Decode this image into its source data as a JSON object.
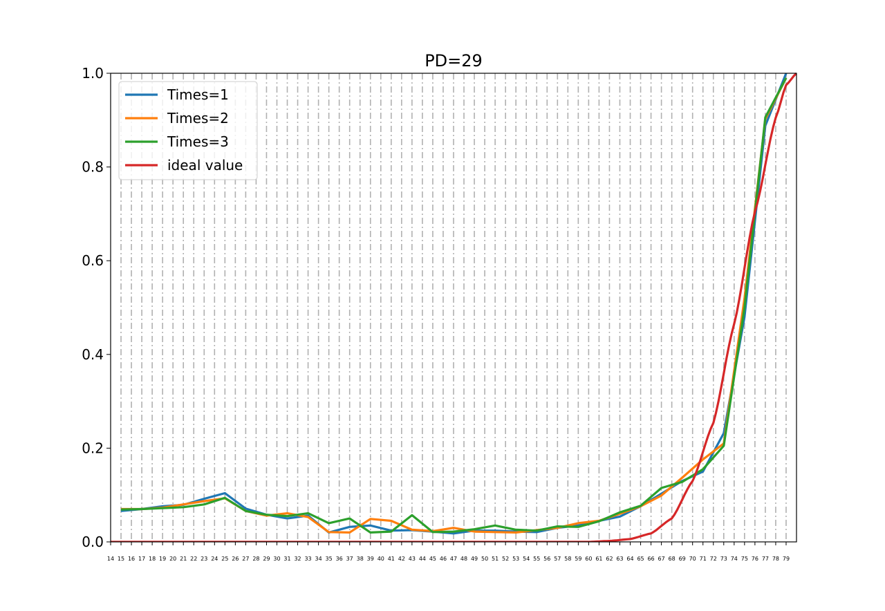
{
  "chart_data": {
    "type": "line",
    "title": "PD=29",
    "xlabel": "",
    "ylabel": "",
    "xlim": [
      14,
      80
    ],
    "ylim": [
      0,
      1.0
    ],
    "x_ticks": [
      14,
      15,
      16,
      17,
      18,
      19,
      20,
      21,
      22,
      23,
      24,
      25,
      26,
      27,
      28,
      29,
      30,
      31,
      32,
      33,
      34,
      35,
      36,
      37,
      38,
      39,
      40,
      41,
      42,
      43,
      44,
      45,
      46,
      47,
      48,
      49,
      50,
      51,
      52,
      53,
      54,
      55,
      56,
      57,
      58,
      59,
      60,
      61,
      62,
      63,
      64,
      65,
      66,
      67,
      68,
      69,
      70,
      71,
      72,
      73,
      74,
      75,
      76,
      77,
      78,
      79
    ],
    "y_ticks": [
      "0.0",
      "0.2",
      "0.4",
      "0.6",
      "0.8",
      "1.0"
    ],
    "y_tick_values": [
      0,
      0.2,
      0.4,
      0.6,
      0.8,
      1.0
    ],
    "grid": "vertical dash-dot gray",
    "legend_position": "upper-left",
    "x": [
      15,
      17,
      19,
      21,
      23,
      25,
      27,
      29,
      31,
      33,
      35,
      37,
      39,
      41,
      43,
      45,
      47,
      49,
      51,
      53,
      55,
      57,
      59,
      61,
      63,
      65,
      67,
      69,
      71,
      73,
      75,
      77,
      79
    ],
    "series": [
      {
        "name": "Times=1",
        "color": "#1f77b4",
        "values": [
          0.066,
          0.07,
          0.076,
          0.079,
          0.092,
          0.104,
          0.071,
          0.058,
          0.05,
          0.056,
          0.02,
          0.032,
          0.035,
          0.024,
          0.025,
          0.022,
          0.018,
          0.024,
          0.024,
          0.022,
          0.021,
          0.03,
          0.035,
          0.045,
          0.054,
          0.076,
          0.103,
          0.13,
          0.15,
          0.232,
          0.48,
          0.888,
          1.0
        ]
      },
      {
        "name": "Times=2",
        "color": "#ff7f0e",
        "values": [
          0.07,
          0.07,
          0.073,
          0.08,
          0.087,
          0.093,
          0.066,
          0.056,
          0.061,
          0.053,
          0.021,
          0.02,
          0.049,
          0.045,
          0.026,
          0.023,
          0.03,
          0.022,
          0.021,
          0.02,
          0.025,
          0.03,
          0.04,
          0.045,
          0.06,
          0.076,
          0.099,
          0.137,
          0.176,
          0.21,
          0.52,
          0.902,
          0.99
        ]
      },
      {
        "name": "Times=3",
        "color": "#2ca02c",
        "values": [
          0.069,
          0.07,
          0.072,
          0.074,
          0.08,
          0.094,
          0.066,
          0.058,
          0.055,
          0.061,
          0.04,
          0.05,
          0.02,
          0.022,
          0.057,
          0.021,
          0.022,
          0.027,
          0.035,
          0.026,
          0.024,
          0.033,
          0.032,
          0.044,
          0.063,
          0.077,
          0.115,
          0.128,
          0.155,
          0.205,
          0.5,
          0.906,
          0.99
        ]
      },
      {
        "name": "ideal value",
        "color": "#d62728",
        "curve": "exponential",
        "values_at_x": [
          [
            14,
            0
          ],
          [
            60,
            0
          ],
          [
            62,
            0.002
          ],
          [
            64,
            0.006
          ],
          [
            66,
            0.018
          ],
          [
            68,
            0.05
          ],
          [
            70,
            0.13
          ],
          [
            72,
            0.254
          ],
          [
            74,
            0.465
          ],
          [
            76,
            0.704
          ],
          [
            78,
            0.905
          ],
          [
            79,
            0.975
          ],
          [
            80,
            1.0
          ]
        ]
      }
    ]
  }
}
